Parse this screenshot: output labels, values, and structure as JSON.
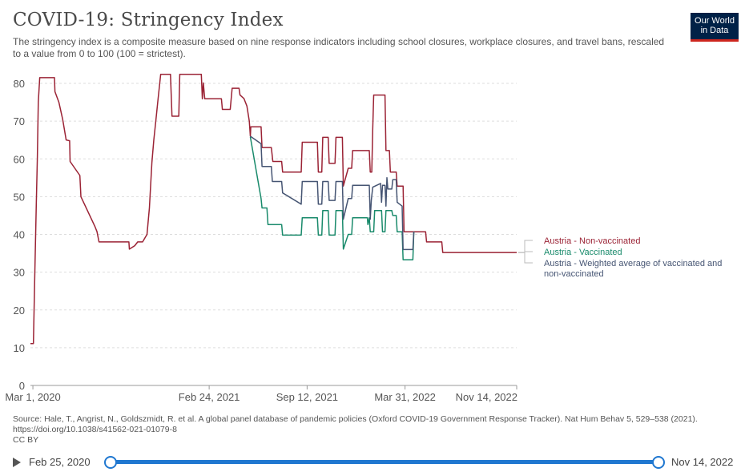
{
  "header": {
    "title": "COVID-19: Stringency Index",
    "subtitle": "The stringency index is a composite measure based on nine response indicators including school closures, workplace closures, and travel bans, rescaled to a value from 0 to 100 (100 = strictest).",
    "logo_line1": "Our World",
    "logo_line2": "in Data"
  },
  "colors": {
    "non_vaccinated": "#9b2335",
    "vaccinated": "#198a6b",
    "weighted": "#465573",
    "grid": "#dddddd",
    "axis": "#999999",
    "slider": "#1f77d0"
  },
  "chart_data": {
    "type": "line",
    "title": "COVID-19: Stringency Index",
    "xlabel": "",
    "ylabel": "",
    "ylim": [
      0,
      80
    ],
    "yticks": [
      0,
      10,
      20,
      30,
      40,
      50,
      60,
      70,
      80
    ],
    "xlim": [
      "2020-02-25",
      "2022-11-14"
    ],
    "xticks": [
      {
        "date": "2020-03-01",
        "label": "Mar 1, 2020"
      },
      {
        "date": "2021-02-24",
        "label": "Feb 24, 2021"
      },
      {
        "date": "2021-09-12",
        "label": "Sep 12, 2021"
      },
      {
        "date": "2022-03-31",
        "label": "Mar 31, 2022"
      },
      {
        "date": "2022-11-14",
        "label": "Nov 14, 2022"
      }
    ],
    "grid": "horizontal dashed",
    "legend": "right, at line ends",
    "series": [
      {
        "name": "Austria - Non-vaccinated",
        "color": "#9b2335",
        "points": [
          [
            "2020-02-25",
            11.1
          ],
          [
            "2020-03-02",
            11.1
          ],
          [
            "2020-03-05",
            30
          ],
          [
            "2020-03-08",
            48
          ],
          [
            "2020-03-10",
            60
          ],
          [
            "2020-03-12",
            75
          ],
          [
            "2020-03-15",
            81.5
          ],
          [
            "2020-04-14",
            81.5
          ],
          [
            "2020-04-15",
            77.8
          ],
          [
            "2020-04-23",
            75
          ],
          [
            "2020-05-01",
            70.4
          ],
          [
            "2020-05-08",
            65
          ],
          [
            "2020-05-15",
            64.8
          ],
          [
            "2020-05-16",
            59.3
          ],
          [
            "2020-06-05",
            55.6
          ],
          [
            "2020-06-07",
            50
          ],
          [
            "2020-07-06",
            42
          ],
          [
            "2020-07-10",
            40.7
          ],
          [
            "2020-07-14",
            38
          ],
          [
            "2020-09-13",
            38
          ],
          [
            "2020-09-14",
            36.1
          ],
          [
            "2020-09-25",
            37
          ],
          [
            "2020-10-01",
            38
          ],
          [
            "2020-10-11",
            38
          ],
          [
            "2020-10-20",
            40
          ],
          [
            "2020-10-25",
            47
          ],
          [
            "2020-10-30",
            59
          ],
          [
            "2020-11-03",
            65
          ],
          [
            "2020-11-07",
            70
          ],
          [
            "2020-11-11",
            75
          ],
          [
            "2020-11-17",
            82.4
          ],
          [
            "2020-12-07",
            82.4
          ],
          [
            "2020-12-10",
            71.3
          ],
          [
            "2020-12-24",
            71.3
          ],
          [
            "2020-12-26",
            82.4
          ],
          [
            "2021-02-08",
            82.4
          ],
          [
            "2021-02-10",
            75.9
          ],
          [
            "2021-02-12",
            80.1
          ],
          [
            "2021-02-15",
            75.9
          ],
          [
            "2021-03-21",
            75.9
          ],
          [
            "2021-03-23",
            73.1
          ],
          [
            "2021-04-08",
            73.1
          ],
          [
            "2021-04-12",
            78.7
          ],
          [
            "2021-04-26",
            78.7
          ],
          [
            "2021-04-28",
            76.9
          ],
          [
            "2021-05-06",
            76
          ],
          [
            "2021-05-12",
            74
          ],
          [
            "2021-05-17",
            70
          ],
          [
            "2021-05-19",
            66
          ],
          [
            "2021-05-20",
            68.5
          ],
          [
            "2021-06-10",
            68.5
          ],
          [
            "2021-06-12",
            63
          ],
          [
            "2021-07-01",
            63
          ],
          [
            "2021-07-04",
            59.3
          ],
          [
            "2021-07-22",
            59.3
          ],
          [
            "2021-07-24",
            56.5
          ],
          [
            "2021-08-31",
            56.5
          ],
          [
            "2021-09-02",
            64.4
          ],
          [
            "2021-10-03",
            64.4
          ],
          [
            "2021-10-05",
            56.5
          ],
          [
            "2021-10-12",
            56.5
          ],
          [
            "2021-10-14",
            65.7
          ],
          [
            "2021-10-25",
            65.7
          ],
          [
            "2021-10-27",
            58.8
          ],
          [
            "2021-11-08",
            58.8
          ],
          [
            "2021-11-10",
            65.7
          ],
          [
            "2021-11-23",
            65.7
          ],
          [
            "2021-11-25",
            52.8
          ],
          [
            "2021-12-05",
            57.5
          ],
          [
            "2021-12-12",
            57.5
          ],
          [
            "2021-12-14",
            62.2
          ],
          [
            "2022-01-17",
            62.2
          ],
          [
            "2022-01-19",
            56.5
          ],
          [
            "2022-01-22",
            56.5
          ],
          [
            "2022-01-24",
            68
          ],
          [
            "2022-01-26",
            76.9
          ],
          [
            "2022-02-18",
            76.9
          ],
          [
            "2022-02-20",
            62.2
          ],
          [
            "2022-02-27",
            62.2
          ],
          [
            "2022-03-01",
            56.5
          ],
          [
            "2022-03-13",
            56.5
          ],
          [
            "2022-03-15",
            52.8
          ],
          [
            "2022-03-27",
            52.8
          ],
          [
            "2022-03-29",
            40.7
          ],
          [
            "2022-05-12",
            40.7
          ],
          [
            "2022-05-14",
            38
          ],
          [
            "2022-06-14",
            38
          ],
          [
            "2022-06-16",
            35.2
          ],
          [
            "2022-11-14",
            35.2
          ]
        ]
      },
      {
        "name": "Austria - Vaccinated",
        "color": "#198a6b",
        "points": [
          [
            "2021-05-19",
            65.8
          ],
          [
            "2021-06-10",
            49.5
          ],
          [
            "2021-06-12",
            47
          ],
          [
            "2021-06-22",
            47
          ],
          [
            "2021-06-24",
            42.6
          ],
          [
            "2021-07-22",
            42.6
          ],
          [
            "2021-07-24",
            39.8
          ],
          [
            "2021-08-31",
            39.8
          ],
          [
            "2021-09-02",
            44.4
          ],
          [
            "2021-10-03",
            44.4
          ],
          [
            "2021-10-05",
            39.8
          ],
          [
            "2021-10-12",
            39.8
          ],
          [
            "2021-10-14",
            46.3
          ],
          [
            "2021-10-25",
            46.3
          ],
          [
            "2021-10-27",
            39.8
          ],
          [
            "2021-11-08",
            39.8
          ],
          [
            "2021-11-10",
            46.3
          ],
          [
            "2021-11-23",
            46.3
          ],
          [
            "2021-11-25",
            36.1
          ],
          [
            "2021-12-05",
            40
          ],
          [
            "2021-12-12",
            40
          ],
          [
            "2021-12-14",
            44.4
          ],
          [
            "2022-01-13",
            44.4
          ],
          [
            "2022-01-14",
            42.6
          ],
          [
            "2022-01-17",
            44.4
          ],
          [
            "2022-01-19",
            40.7
          ],
          [
            "2022-01-26",
            40.7
          ],
          [
            "2022-01-28",
            46.3
          ],
          [
            "2022-02-11",
            46.3
          ],
          [
            "2022-02-13",
            40.7
          ],
          [
            "2022-02-18",
            40.7
          ],
          [
            "2022-02-20",
            46.3
          ],
          [
            "2022-03-04",
            46.3
          ],
          [
            "2022-03-06",
            45
          ],
          [
            "2022-03-13",
            45
          ],
          [
            "2022-03-15",
            40.7
          ],
          [
            "2022-03-25",
            40.7
          ],
          [
            "2022-03-27",
            33.3
          ],
          [
            "2022-04-16",
            33.3
          ],
          [
            "2022-04-18",
            40.7
          ]
        ]
      },
      {
        "name": "Austria - Weighted average of vaccinated and non-vaccinated",
        "color": "#465573",
        "points": [
          [
            "2021-05-19",
            66
          ],
          [
            "2021-06-10",
            64
          ],
          [
            "2021-06-12",
            58
          ],
          [
            "2021-07-01",
            58
          ],
          [
            "2021-07-03",
            54
          ],
          [
            "2021-07-22",
            54
          ],
          [
            "2021-07-24",
            51
          ],
          [
            "2021-08-31",
            48
          ],
          [
            "2021-09-02",
            54
          ],
          [
            "2021-10-03",
            54
          ],
          [
            "2021-10-05",
            48
          ],
          [
            "2021-10-12",
            48
          ],
          [
            "2021-10-14",
            54
          ],
          [
            "2021-10-25",
            54
          ],
          [
            "2021-10-27",
            49
          ],
          [
            "2021-11-08",
            49
          ],
          [
            "2021-11-10",
            54
          ],
          [
            "2021-11-23",
            54
          ],
          [
            "2021-11-25",
            44
          ],
          [
            "2021-12-05",
            49.5
          ],
          [
            "2021-12-12",
            49.5
          ],
          [
            "2021-12-14",
            53
          ],
          [
            "2022-01-17",
            53
          ],
          [
            "2022-01-19",
            44
          ],
          [
            "2022-01-21",
            49
          ],
          [
            "2022-01-24",
            52.5
          ],
          [
            "2022-02-09",
            53.5
          ],
          [
            "2022-02-11",
            48.5
          ],
          [
            "2022-02-13",
            53
          ],
          [
            "2022-02-18",
            53
          ],
          [
            "2022-02-20",
            47.5
          ],
          [
            "2022-02-22",
            55
          ],
          [
            "2022-02-24",
            52
          ],
          [
            "2022-03-04",
            52
          ],
          [
            "2022-03-06",
            54.5
          ],
          [
            "2022-03-13",
            54.5
          ],
          [
            "2022-03-15",
            48.5
          ],
          [
            "2022-03-20",
            48
          ],
          [
            "2022-03-25",
            47.5
          ],
          [
            "2022-03-27",
            36
          ],
          [
            "2022-04-16",
            36
          ],
          [
            "2022-04-18",
            40.7
          ]
        ]
      }
    ]
  },
  "footer": {
    "source": "Source: Hale, T., Angrist, N., Goldszmidt, R. et al. A global panel database of pandemic policies (Oxford COVID-19 Government Response Tracker). Nat Hum Behav 5, 529–538 (2021). https://doi.org/10.1038/s41562-021-01079-8",
    "license": "CC BY"
  },
  "timeline": {
    "start_label": "Feb 25, 2020",
    "end_label": "Nov 14, 2022",
    "start_fraction": 0,
    "end_fraction": 1
  }
}
